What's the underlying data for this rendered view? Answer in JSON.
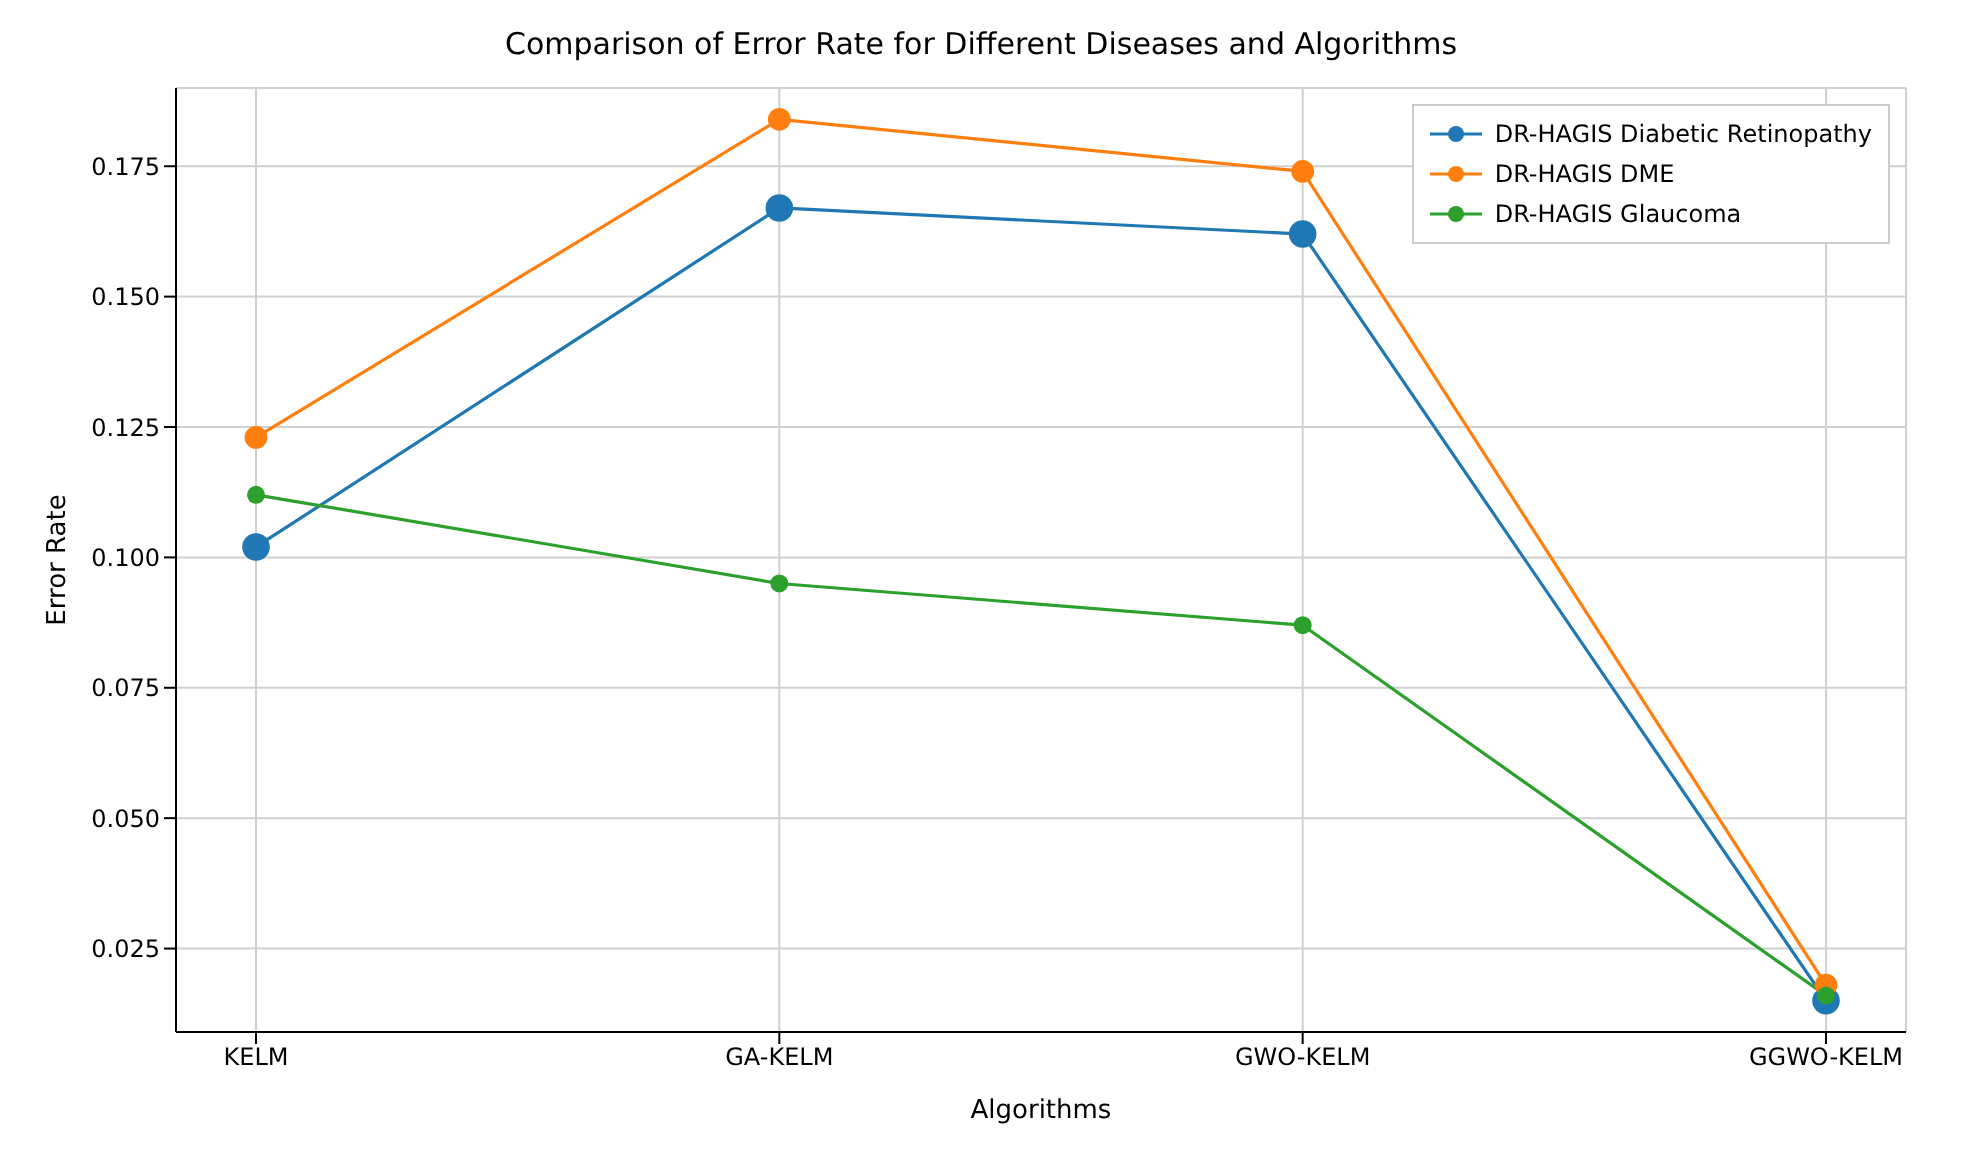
{
  "chart_data": {
    "type": "line",
    "title": "Comparison of Error Rate for Different Diseases and Algorithms",
    "xlabel": "Algorithms",
    "ylabel": "Error Rate",
    "categories": [
      "KELM",
      "GA-KELM",
      "GWO-KELM",
      "GGWO-KELM"
    ],
    "series": [
      {
        "name": "DR-HAGIS Diabetic Retinopathy",
        "color": "#1f77b4",
        "values": [
          0.102,
          0.167,
          0.162,
          0.015
        ]
      },
      {
        "name": "DR-HAGIS DME",
        "color": "#ff7f0e",
        "values": [
          0.123,
          0.184,
          0.174,
          0.018
        ]
      },
      {
        "name": "DR-HAGIS Glaucoma",
        "color": "#2ca02c",
        "values": [
          0.112,
          0.095,
          0.087,
          0.016
        ]
      }
    ],
    "ylim": [
      0.009,
      0.19
    ],
    "yticks": [
      {
        "value": 0.025,
        "label": "0.025"
      },
      {
        "value": 0.05,
        "label": "0.050"
      },
      {
        "value": 0.075,
        "label": "0.075"
      },
      {
        "value": 0.1,
        "label": "0.100"
      },
      {
        "value": 0.125,
        "label": "0.125"
      },
      {
        "value": 0.15,
        "label": "0.150"
      },
      {
        "value": 0.175,
        "label": "0.175"
      }
    ],
    "grid": true,
    "legend": "top right",
    "marker": "circle",
    "line_style": "solid"
  }
}
